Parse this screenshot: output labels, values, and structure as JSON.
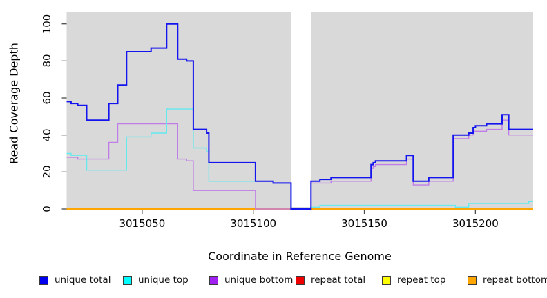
{
  "chart_data": {
    "type": "line",
    "subtype": "step",
    "title": "",
    "xlabel": "Coordinate in Reference Genome",
    "ylabel": "Read Coverage Depth",
    "xlim": [
      3015016,
      3015226
    ],
    "ylim": [
      0,
      106.6
    ],
    "x_ticks": [
      "3015050",
      "3015100",
      "3015150",
      "3015200"
    ],
    "x_tick_values": [
      3015050,
      3015100,
      3015150,
      3015200
    ],
    "y_ticks": [
      "0",
      "20",
      "40",
      "60",
      "80",
      "100"
    ],
    "y_tick_values": [
      0,
      20,
      40,
      60,
      80,
      100
    ],
    "grid": false,
    "legend_position": "bottom",
    "plot_background": "#d9d9d9",
    "page_background": "#ffffff",
    "tick_color": "#4a4a4a",
    "no_data_region": {
      "from": 3015117,
      "to": 3015126,
      "color": "#ffffff"
    },
    "series": [
      {
        "name": "repeat total",
        "line_color": "#e00000",
        "width": 2,
        "steps": [
          [
            3015016,
            0
          ]
        ]
      },
      {
        "name": "repeat top",
        "line_color": "#ffff00",
        "width": 2,
        "steps": [
          [
            3015016,
            0
          ]
        ]
      },
      {
        "name": "repeat bottom",
        "line_color": "#ffa500",
        "width": 2,
        "steps": [
          [
            3015016,
            0
          ]
        ]
      },
      {
        "name": "unique bottom",
        "line_color": "#c standalone",
        "width": 1.4,
        "steps": []
      },
      {
        "name": "unique top",
        "line_color": "#63e9ee",
        "width": 1.4,
        "steps": [
          [
            3015016,
            30
          ],
          [
            3015018,
            29
          ],
          [
            3015025,
            21
          ],
          [
            3015043,
            39
          ],
          [
            3015054,
            41
          ],
          [
            3015061,
            54
          ],
          [
            3015073,
            33
          ],
          [
            3015079,
            31
          ],
          [
            3015080,
            15
          ],
          [
            3015109,
            14
          ],
          [
            3015117,
            0
          ],
          [
            3015126,
            1
          ],
          [
            3015130,
            2
          ],
          [
            3015191,
            1
          ],
          [
            3015197,
            3
          ],
          [
            3015224,
            4
          ]
        ]
      },
      {
        "name": "unique total",
        "line_color": "#1414ee",
        "width": 2,
        "steps": [
          [
            3015016,
            58
          ],
          [
            3015018,
            57
          ],
          [
            3015021,
            56
          ],
          [
            3015025,
            48
          ],
          [
            3015035,
            57
          ],
          [
            3015039,
            67
          ],
          [
            3015043,
            85
          ],
          [
            3015054,
            87
          ],
          [
            3015061,
            100
          ],
          [
            3015066,
            81
          ],
          [
            3015070,
            80
          ],
          [
            3015073,
            43
          ],
          [
            3015079,
            41
          ],
          [
            3015080,
            25
          ],
          [
            3015101,
            15
          ],
          [
            3015109,
            14
          ],
          [
            3015117,
            0
          ],
          [
            3015126,
            15
          ],
          [
            3015130,
            16
          ],
          [
            3015135,
            17
          ],
          [
            3015153,
            24
          ],
          [
            3015154,
            25
          ],
          [
            3015155,
            26
          ],
          [
            3015169,
            29
          ],
          [
            3015172,
            15
          ],
          [
            3015179,
            17
          ],
          [
            3015190,
            40
          ],
          [
            3015197,
            41
          ],
          [
            3015199,
            44
          ],
          [
            3015200,
            45
          ],
          [
            3015205,
            46
          ],
          [
            3015212,
            51
          ],
          [
            3015215,
            43
          ]
        ]
      }
    ],
    "unique_bottom_series": {
      "name": "unique bottom",
      "line_color": "#c07de8",
      "width": 1.4,
      "steps": [
        [
          3015016,
          28
        ],
        [
          3015021,
          27
        ],
        [
          3015035,
          36
        ],
        [
          3015039,
          46
        ],
        [
          3015066,
          27
        ],
        [
          3015070,
          26
        ],
        [
          3015073,
          10
        ],
        [
          3015101,
          0
        ],
        [
          3015126,
          14
        ],
        [
          3015135,
          15
        ],
        [
          3015153,
          22
        ],
        [
          3015154,
          23
        ],
        [
          3015155,
          24
        ],
        [
          3015169,
          27
        ],
        [
          3015172,
          13
        ],
        [
          3015179,
          15
        ],
        [
          3015190,
          38
        ],
        [
          3015197,
          40
        ],
        [
          3015199,
          42
        ],
        [
          3015205,
          43
        ],
        [
          3015212,
          48
        ],
        [
          3015215,
          40
        ]
      ]
    },
    "legend": [
      {
        "label": "unique total",
        "swatch": "#0000ee"
      },
      {
        "label": "unique top",
        "swatch": "#00ffff"
      },
      {
        "label": "unique bottom",
        "swatch": "#a020f0"
      },
      {
        "label": "repeat total",
        "swatch": "#ee0000"
      },
      {
        "label": "repeat top",
        "swatch": "#ffff00"
      },
      {
        "label": "repeat bottom",
        "swatch": "#ffa500"
      }
    ]
  }
}
